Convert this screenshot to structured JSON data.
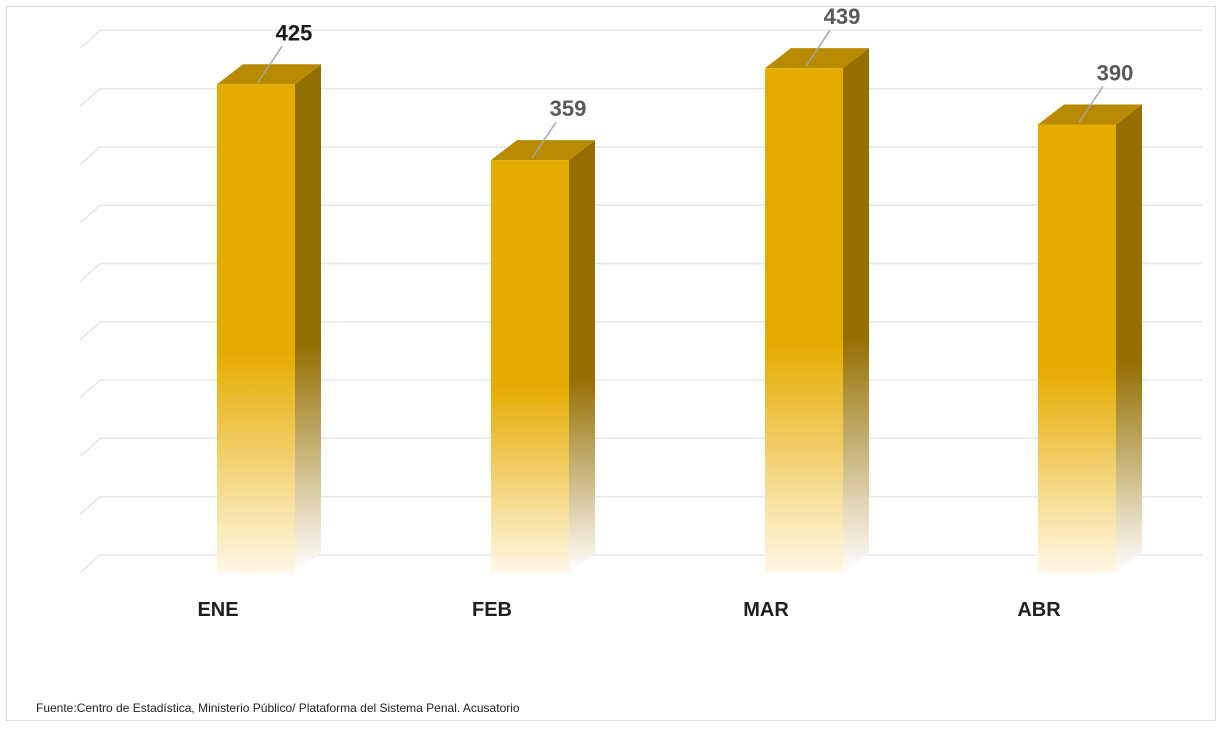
{
  "chart_data": {
    "type": "bar",
    "categories": [
      "ENE",
      "FEB",
      "MAR",
      "ABR"
    ],
    "values": [
      425,
      359,
      439,
      390
    ],
    "title": "",
    "xlabel": "",
    "ylabel": "",
    "ylim": [
      0,
      490
    ],
    "grid": true,
    "three_d": true,
    "legend": "none"
  },
  "colors": {
    "bar_front": "#e5ac00",
    "bar_side": "#946f00",
    "bar_top": "#b88a00",
    "grid": "#e6e6e6"
  },
  "source": "Fuente:Centro de Estadística, Ministerio Público/ Plataforma del Sistema Penal. Acusatorio"
}
